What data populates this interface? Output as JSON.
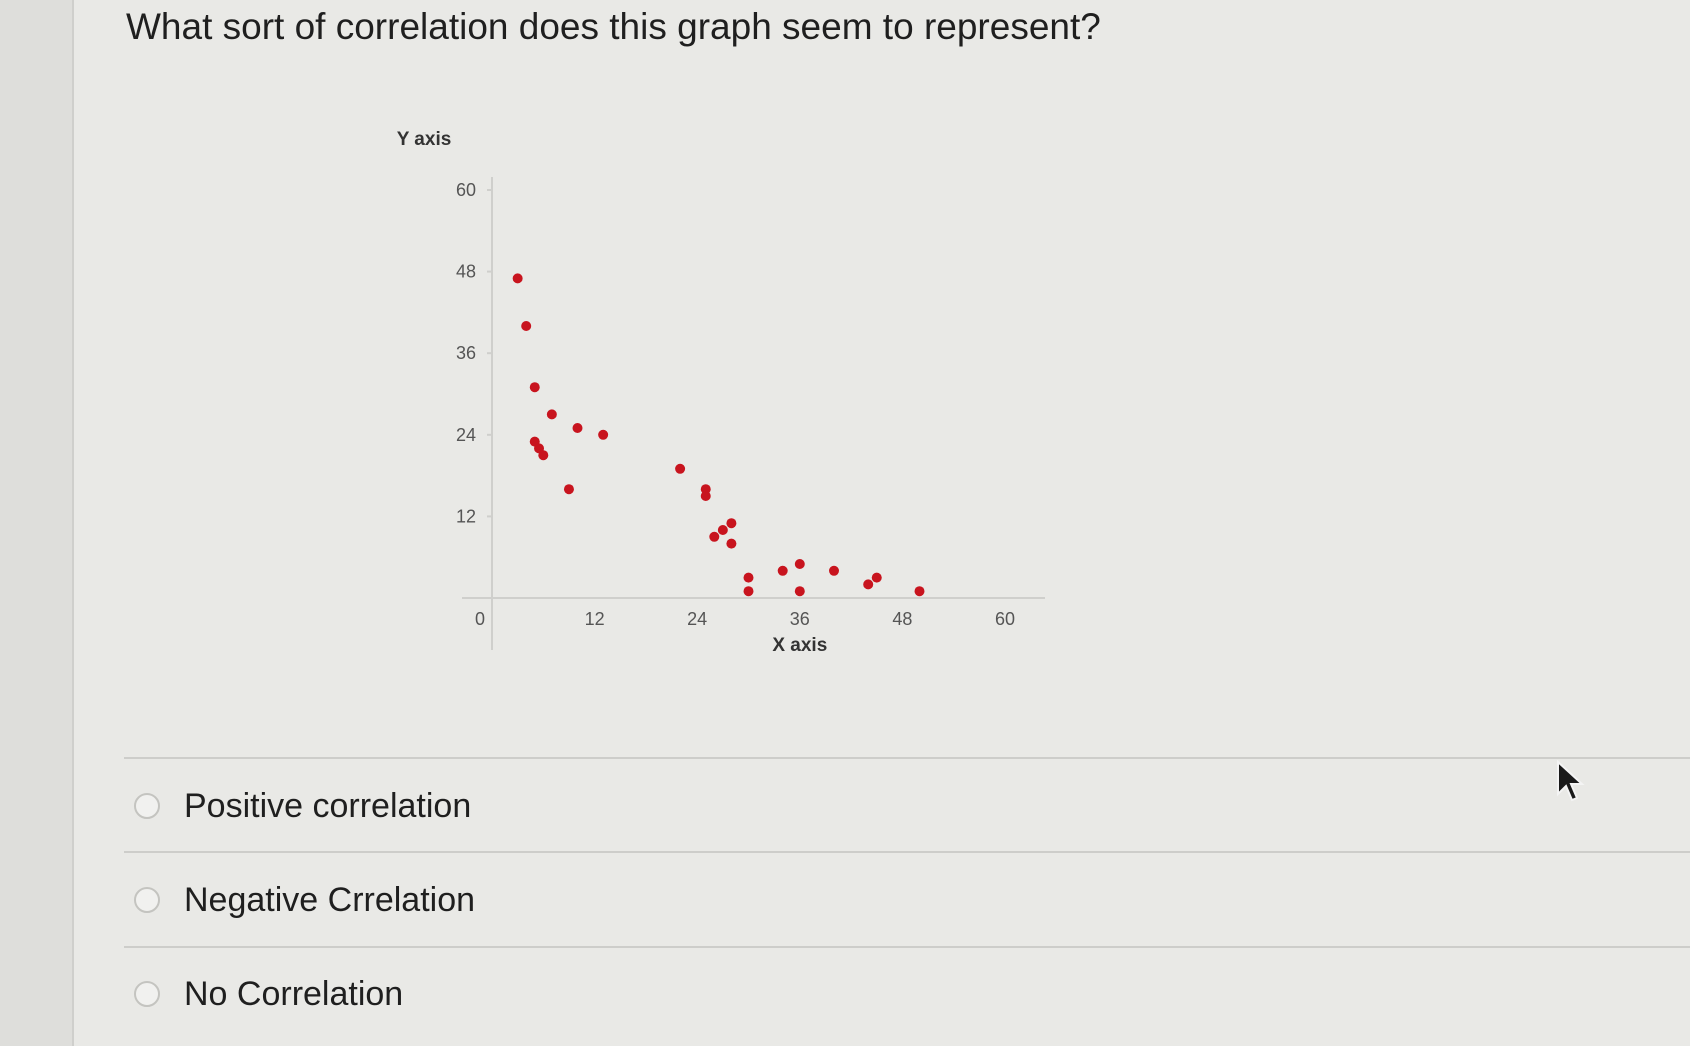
{
  "question": {
    "text": "What sort of correlation does this graph seem to represent?"
  },
  "chart_data": {
    "type": "scatter",
    "xlabel": "X axis",
    "ylabel": "Y axis",
    "xlim": [
      0,
      60
    ],
    "ylim": [
      0,
      60
    ],
    "x_ticks": [
      0,
      12,
      24,
      36,
      48,
      60
    ],
    "y_ticks": [
      12,
      24,
      36,
      48,
      60
    ],
    "point_color": "#c8141e",
    "points": [
      {
        "x": 3,
        "y": 47
      },
      {
        "x": 4,
        "y": 40
      },
      {
        "x": 5,
        "y": 31
      },
      {
        "x": 5,
        "y": 23
      },
      {
        "x": 5.5,
        "y": 22
      },
      {
        "x": 6,
        "y": 21
      },
      {
        "x": 7,
        "y": 27
      },
      {
        "x": 9,
        "y": 16
      },
      {
        "x": 10,
        "y": 25
      },
      {
        "x": 13,
        "y": 24
      },
      {
        "x": 22,
        "y": 19
      },
      {
        "x": 25,
        "y": 16
      },
      {
        "x": 25,
        "y": 15
      },
      {
        "x": 26,
        "y": 9
      },
      {
        "x": 27,
        "y": 10
      },
      {
        "x": 28,
        "y": 11
      },
      {
        "x": 28,
        "y": 8
      },
      {
        "x": 30,
        "y": 3
      },
      {
        "x": 30,
        "y": 1
      },
      {
        "x": 34,
        "y": 4
      },
      {
        "x": 36,
        "y": 5
      },
      {
        "x": 36,
        "y": 1
      },
      {
        "x": 40,
        "y": 4
      },
      {
        "x": 44,
        "y": 2
      },
      {
        "x": 45,
        "y": 3
      },
      {
        "x": 50,
        "y": 1
      }
    ]
  },
  "options": [
    {
      "label": "Positive correlation",
      "selected": false
    },
    {
      "label": "Negative Crrelation",
      "selected": false
    },
    {
      "label": "No Correlation",
      "selected": false
    }
  ]
}
